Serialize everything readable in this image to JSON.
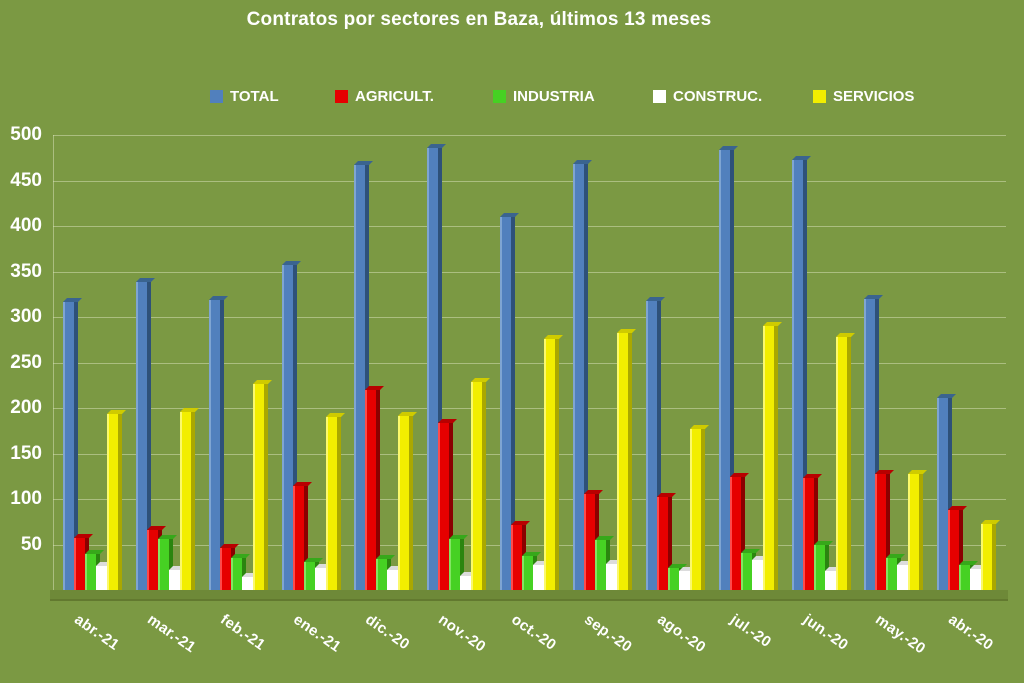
{
  "title": "Contratos por sectores en Baza, últimos 13 meses",
  "colors": {
    "background": "#7B9943",
    "floor": "#6E8938",
    "gridline": "#DBE4BE",
    "text": "#FFFFFF"
  },
  "chart_data": {
    "type": "bar",
    "title": "Contratos por sectores en Baza, últimos 13 meses",
    "xlabel": "",
    "ylabel": "",
    "ylim": [
      0,
      500
    ],
    "yticks": [
      50,
      100,
      150,
      200,
      250,
      300,
      350,
      400,
      450,
      500
    ],
    "grid": true,
    "legend_position": "top",
    "categories": [
      "abr.-21",
      "mar.-21",
      "feb.-21",
      "ene.-21",
      "dic.-20",
      "nov.-20",
      "oct.-20",
      "sep.-20",
      "ago.-20",
      "jul.-20",
      "jun.-20",
      "may.-20",
      "abr.-20"
    ],
    "series": [
      {
        "name": "TOTAL",
        "values": [
          317,
          338,
          319,
          357,
          467,
          486,
          410,
          468,
          318,
          483,
          472,
          320,
          211
        ],
        "color": "#5180BD",
        "color_light": "#7FA5D2",
        "color_dark": "#2E5179",
        "color_top": "#3A648F"
      },
      {
        "name": "AGRICULT.",
        "values": [
          57,
          66,
          46,
          114,
          220,
          183,
          71,
          106,
          102,
          124,
          123,
          128,
          88
        ],
        "color": "#E60000",
        "color_light": "#FF4A4A",
        "color_dark": "#8B0000",
        "color_top": "#B80000"
      },
      {
        "name": "INDUSTRIA",
        "values": [
          40,
          56,
          35,
          31,
          34,
          56,
          37,
          55,
          24,
          41,
          49,
          35,
          28
        ],
        "color": "#46D123",
        "color_light": "#83E562",
        "color_dark": "#2B850F",
        "color_top": "#37A81A"
      },
      {
        "name": "CONSTRUC.",
        "values": [
          26,
          22,
          14,
          24,
          22,
          15,
          28,
          29,
          21,
          33,
          21,
          28,
          23
        ],
        "color": "#FFFFFF",
        "color_light": "#FFFFFF",
        "color_dark": "#BDBDBD",
        "color_top": "#DCDCDC"
      },
      {
        "name": "SERVICIOS",
        "values": [
          193,
          196,
          226,
          190,
          191,
          229,
          276,
          282,
          177,
          290,
          278,
          128,
          73
        ],
        "color": "#F2EE00",
        "color_light": "#FBF96B",
        "color_dark": "#AAA800",
        "color_top": "#CFCB00"
      }
    ]
  }
}
